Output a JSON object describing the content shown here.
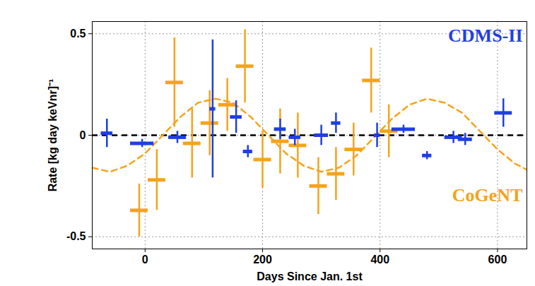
{
  "chart_data": {
    "type": "scatter",
    "x_label": "Days Since Jan. 1st",
    "y_label": "Rate [kg day keVnr]⁻¹",
    "xlim": [
      -90,
      650
    ],
    "ylim": [
      -0.56,
      0.56
    ],
    "xticks": [
      0,
      200,
      400,
      600
    ],
    "yticks": [
      -0.5,
      0,
      0.5
    ],
    "grid": true,
    "legend": "right",
    "reference_lines": [
      {
        "y": 0,
        "color": "#000000",
        "line_style": "dashed"
      }
    ],
    "series": [
      {
        "name": "CoGeNT",
        "type": "scatter",
        "marker": "errorbar",
        "color": "#f5a31a",
        "x": [
          -10,
          20,
          50,
          80,
          110,
          140,
          170,
          200,
          230,
          260,
          295,
          325,
          355,
          385,
          415
        ],
        "values": [
          -0.37,
          -0.22,
          0.26,
          -0.04,
          0.06,
          0.15,
          0.34,
          -0.12,
          -0.03,
          -0.05,
          -0.25,
          -0.19,
          -0.07,
          0.27,
          0.02
        ],
        "x_err": [
          15,
          15,
          15,
          15,
          15,
          15,
          15,
          15,
          15,
          15,
          15,
          15,
          15,
          15,
          15
        ],
        "y_err": [
          0.13,
          0.15,
          0.22,
          0.17,
          0.16,
          0.13,
          0.18,
          0.14,
          0.16,
          0.16,
          0.14,
          0.13,
          0.13,
          0.16,
          0.13
        ]
      },
      {
        "name": "CDMS-II",
        "type": "scatter",
        "marker": "errorbar",
        "color": "#1f3fe0",
        "x": [
          -65,
          -5,
          55,
          115,
          155,
          175,
          230,
          255,
          300,
          325,
          395,
          440,
          480,
          525,
          545,
          610
        ],
        "values": [
          0.01,
          -0.04,
          -0.01,
          0.13,
          0.09,
          -0.08,
          0.03,
          -0.01,
          0.0,
          0.06,
          0.0,
          0.03,
          -0.1,
          -0.01,
          -0.02,
          0.11
        ],
        "x_err": [
          10,
          20,
          15,
          5,
          10,
          8,
          10,
          10,
          12,
          8,
          5,
          20,
          8,
          15,
          12,
          15
        ],
        "y_err": [
          0.07,
          0.02,
          0.03,
          0.34,
          0.08,
          0.03,
          0.05,
          0.04,
          0.05,
          0.05,
          0.06,
          0.02,
          0.02,
          0.03,
          0.03,
          0.07
        ]
      },
      {
        "type": "line",
        "color": "#f5a31a",
        "line_style": "dashed",
        "x": [
          -90,
          -60,
          -30,
          0,
          30,
          60,
          90,
          120,
          150,
          180,
          210,
          240,
          270,
          300,
          330,
          360,
          390,
          420,
          450,
          480,
          510,
          540,
          570,
          600,
          630,
          650
        ],
        "values": [
          -0.16,
          -0.18,
          -0.15,
          -0.09,
          0.0,
          0.09,
          0.16,
          0.18,
          0.16,
          0.09,
          0.0,
          -0.09,
          -0.15,
          -0.18,
          -0.16,
          -0.1,
          -0.01,
          0.08,
          0.15,
          0.18,
          0.16,
          0.11,
          0.02,
          -0.07,
          -0.14,
          -0.17
        ]
      }
    ]
  }
}
